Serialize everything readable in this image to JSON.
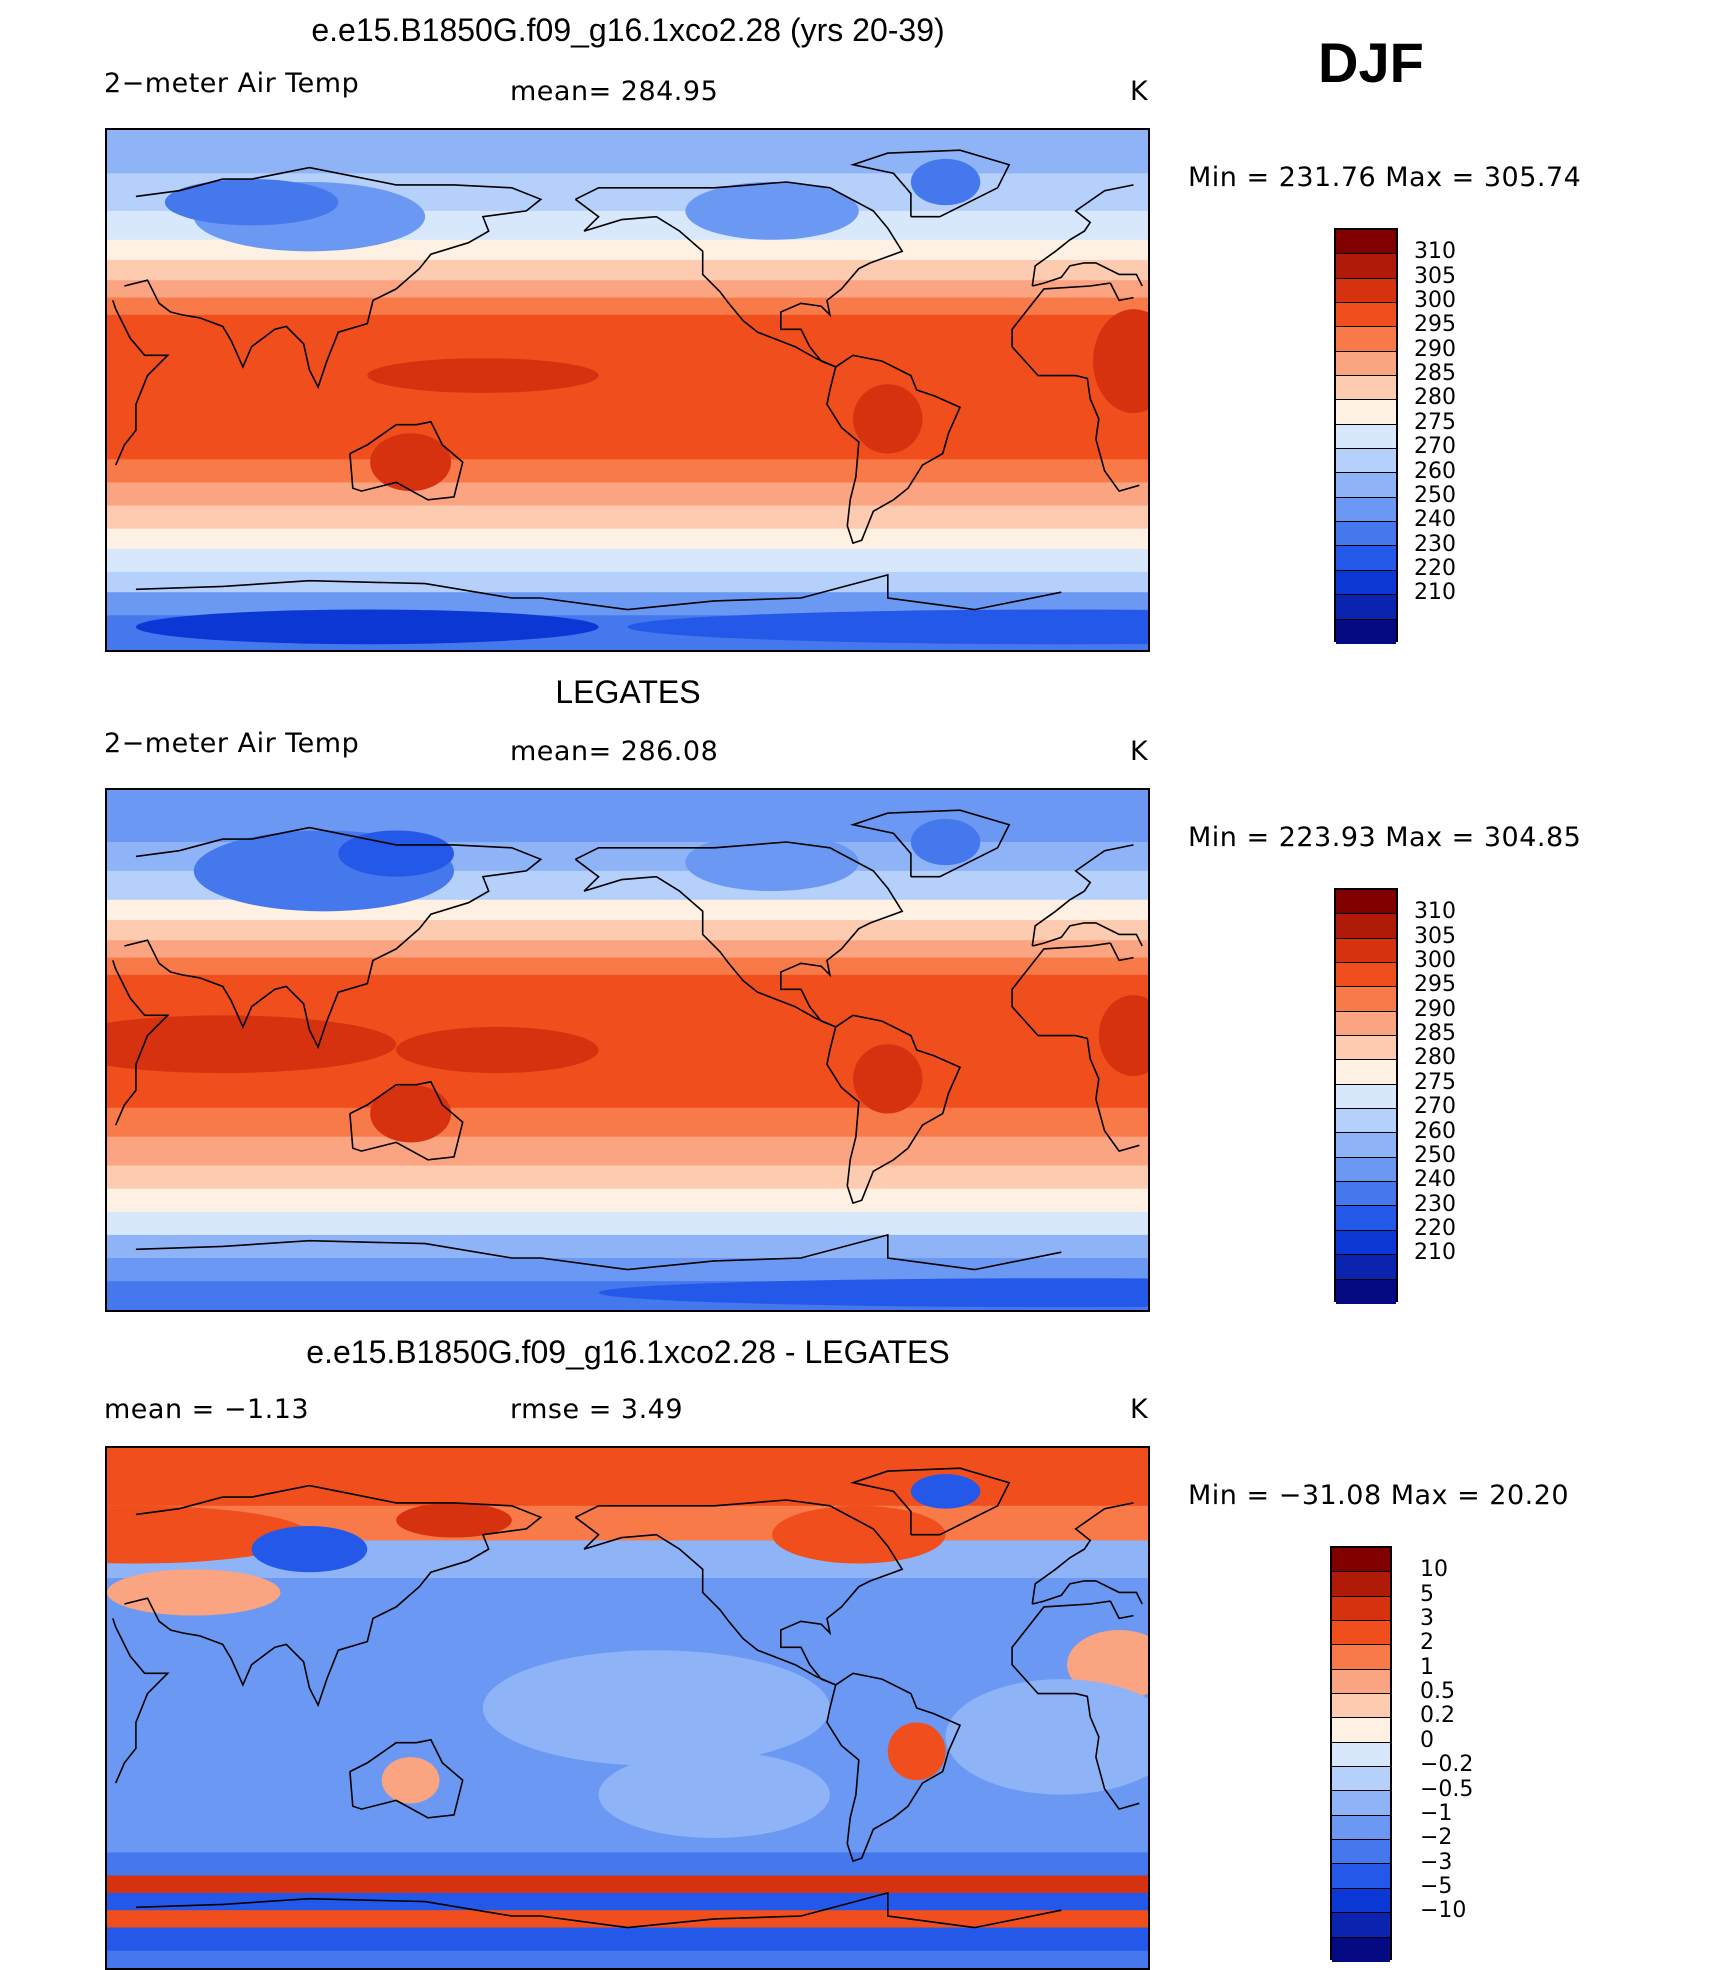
{
  "season": "DJF",
  "colors": {
    "temp_scale": [
      "#800000",
      "#b01a09",
      "#d73210",
      "#f04e1c",
      "#f87a48",
      "#fba482",
      "#fdcbb0",
      "#fef0e2",
      "#d8e8fc",
      "#b5d0fb",
      "#8eb4f7",
      "#6a98f2",
      "#4478ec",
      "#2458e8",
      "#0b38d4",
      "#0a24b0",
      "#050a82"
    ],
    "diff_scale": [
      "#800000",
      "#b01a09",
      "#d73210",
      "#f04e1c",
      "#f87a48",
      "#fba482",
      "#fdcbb0",
      "#fef0e2",
      "#d8e8fc",
      "#b5d0fb",
      "#8eb4f7",
      "#6a98f2",
      "#4478ec",
      "#2458e8",
      "#0b38d4",
      "#0a24b0",
      "#050a82"
    ]
  },
  "panels": [
    {
      "title": "e.e15.B1850G.f09_g16.1xco2.28 (yrs 20-39)",
      "left_label": "2−meter Air Temp",
      "center_label": "mean=  284.95",
      "units": "K",
      "minmax": "Min  =  231.76  Max  =  305.74"
    },
    {
      "title": "LEGATES",
      "left_label": "2−meter Air Temp",
      "center_label": "mean=  286.08",
      "units": "K",
      "minmax": "Min  =  223.93  Max  =  304.85"
    },
    {
      "title": "e.e15.B1850G.f09_g16.1xco2.28 - LEGATES",
      "left_label": "mean  =     −1.13",
      "center_label": "rmse  =      3.49",
      "units": "K",
      "minmax": "Min  =  −31.08  Max  =     20.20"
    }
  ],
  "chart_data": [
    {
      "type": "heatmap",
      "title": "e.e15.B1850G.f09_g16.1xco2.28 (yrs 20-39)",
      "variable": "2-meter Air Temp",
      "units": "K",
      "mean": 284.95,
      "min": 231.76,
      "max": 305.74,
      "colorbar_levels": [
        "310",
        "305",
        "300",
        "295",
        "290",
        "285",
        "280",
        "275",
        "270",
        "260",
        "250",
        "240",
        "230",
        "220",
        "210"
      ]
    },
    {
      "type": "heatmap",
      "title": "LEGATES",
      "variable": "2-meter Air Temp",
      "units": "K",
      "mean": 286.08,
      "min": 223.93,
      "max": 304.85,
      "colorbar_levels": [
        "310",
        "305",
        "300",
        "295",
        "290",
        "285",
        "280",
        "275",
        "270",
        "260",
        "250",
        "240",
        "230",
        "220",
        "210"
      ]
    },
    {
      "type": "heatmap",
      "title": "e.e15.B1850G.f09_g16.1xco2.28 - LEGATES",
      "units": "K",
      "mean": -1.13,
      "rmse": 3.49,
      "min": -31.08,
      "max": 20.2,
      "colorbar_levels": [
        "10",
        "5",
        "3",
        "2",
        "1",
        "0.5",
        "0.2",
        "0",
        "−0.2",
        "−0.5",
        "−1",
        "−2",
        "−3",
        "−5",
        "−10"
      ]
    }
  ]
}
